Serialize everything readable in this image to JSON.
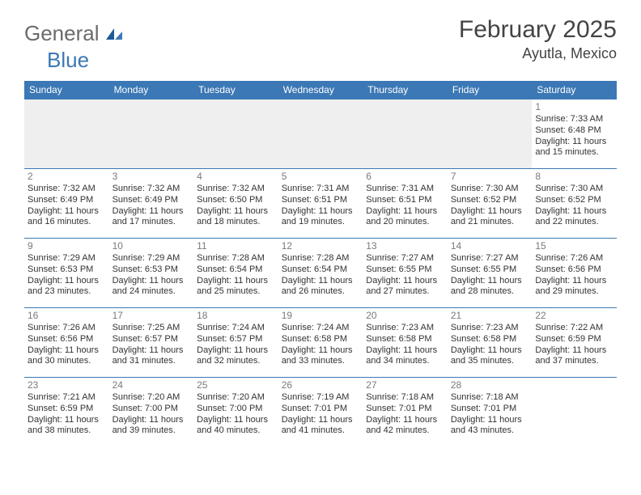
{
  "logo": {
    "part1": "General",
    "part2": "Blue"
  },
  "title": "February 2025",
  "location": "Ayutla, Mexico",
  "colors": {
    "header_bg": "#3b78b5",
    "header_text": "#ffffff",
    "rule": "#3b78b5",
    "daynum": "#7a7a7a",
    "body_text": "#333333",
    "blank_bg": "#efefef"
  },
  "day_headers": [
    "Sunday",
    "Monday",
    "Tuesday",
    "Wednesday",
    "Thursday",
    "Friday",
    "Saturday"
  ],
  "weeks": [
    [
      null,
      null,
      null,
      null,
      null,
      null,
      {
        "n": "1",
        "sr": "Sunrise: 7:33 AM",
        "ss": "Sunset: 6:48 PM",
        "d1": "Daylight: 11 hours",
        "d2": "and 15 minutes."
      }
    ],
    [
      {
        "n": "2",
        "sr": "Sunrise: 7:32 AM",
        "ss": "Sunset: 6:49 PM",
        "d1": "Daylight: 11 hours",
        "d2": "and 16 minutes."
      },
      {
        "n": "3",
        "sr": "Sunrise: 7:32 AM",
        "ss": "Sunset: 6:49 PM",
        "d1": "Daylight: 11 hours",
        "d2": "and 17 minutes."
      },
      {
        "n": "4",
        "sr": "Sunrise: 7:32 AM",
        "ss": "Sunset: 6:50 PM",
        "d1": "Daylight: 11 hours",
        "d2": "and 18 minutes."
      },
      {
        "n": "5",
        "sr": "Sunrise: 7:31 AM",
        "ss": "Sunset: 6:51 PM",
        "d1": "Daylight: 11 hours",
        "d2": "and 19 minutes."
      },
      {
        "n": "6",
        "sr": "Sunrise: 7:31 AM",
        "ss": "Sunset: 6:51 PM",
        "d1": "Daylight: 11 hours",
        "d2": "and 20 minutes."
      },
      {
        "n": "7",
        "sr": "Sunrise: 7:30 AM",
        "ss": "Sunset: 6:52 PM",
        "d1": "Daylight: 11 hours",
        "d2": "and 21 minutes."
      },
      {
        "n": "8",
        "sr": "Sunrise: 7:30 AM",
        "ss": "Sunset: 6:52 PM",
        "d1": "Daylight: 11 hours",
        "d2": "and 22 minutes."
      }
    ],
    [
      {
        "n": "9",
        "sr": "Sunrise: 7:29 AM",
        "ss": "Sunset: 6:53 PM",
        "d1": "Daylight: 11 hours",
        "d2": "and 23 minutes."
      },
      {
        "n": "10",
        "sr": "Sunrise: 7:29 AM",
        "ss": "Sunset: 6:53 PM",
        "d1": "Daylight: 11 hours",
        "d2": "and 24 minutes."
      },
      {
        "n": "11",
        "sr": "Sunrise: 7:28 AM",
        "ss": "Sunset: 6:54 PM",
        "d1": "Daylight: 11 hours",
        "d2": "and 25 minutes."
      },
      {
        "n": "12",
        "sr": "Sunrise: 7:28 AM",
        "ss": "Sunset: 6:54 PM",
        "d1": "Daylight: 11 hours",
        "d2": "and 26 minutes."
      },
      {
        "n": "13",
        "sr": "Sunrise: 7:27 AM",
        "ss": "Sunset: 6:55 PM",
        "d1": "Daylight: 11 hours",
        "d2": "and 27 minutes."
      },
      {
        "n": "14",
        "sr": "Sunrise: 7:27 AM",
        "ss": "Sunset: 6:55 PM",
        "d1": "Daylight: 11 hours",
        "d2": "and 28 minutes."
      },
      {
        "n": "15",
        "sr": "Sunrise: 7:26 AM",
        "ss": "Sunset: 6:56 PM",
        "d1": "Daylight: 11 hours",
        "d2": "and 29 minutes."
      }
    ],
    [
      {
        "n": "16",
        "sr": "Sunrise: 7:26 AM",
        "ss": "Sunset: 6:56 PM",
        "d1": "Daylight: 11 hours",
        "d2": "and 30 minutes."
      },
      {
        "n": "17",
        "sr": "Sunrise: 7:25 AM",
        "ss": "Sunset: 6:57 PM",
        "d1": "Daylight: 11 hours",
        "d2": "and 31 minutes."
      },
      {
        "n": "18",
        "sr": "Sunrise: 7:24 AM",
        "ss": "Sunset: 6:57 PM",
        "d1": "Daylight: 11 hours",
        "d2": "and 32 minutes."
      },
      {
        "n": "19",
        "sr": "Sunrise: 7:24 AM",
        "ss": "Sunset: 6:58 PM",
        "d1": "Daylight: 11 hours",
        "d2": "and 33 minutes."
      },
      {
        "n": "20",
        "sr": "Sunrise: 7:23 AM",
        "ss": "Sunset: 6:58 PM",
        "d1": "Daylight: 11 hours",
        "d2": "and 34 minutes."
      },
      {
        "n": "21",
        "sr": "Sunrise: 7:23 AM",
        "ss": "Sunset: 6:58 PM",
        "d1": "Daylight: 11 hours",
        "d2": "and 35 minutes."
      },
      {
        "n": "22",
        "sr": "Sunrise: 7:22 AM",
        "ss": "Sunset: 6:59 PM",
        "d1": "Daylight: 11 hours",
        "d2": "and 37 minutes."
      }
    ],
    [
      {
        "n": "23",
        "sr": "Sunrise: 7:21 AM",
        "ss": "Sunset: 6:59 PM",
        "d1": "Daylight: 11 hours",
        "d2": "and 38 minutes."
      },
      {
        "n": "24",
        "sr": "Sunrise: 7:20 AM",
        "ss": "Sunset: 7:00 PM",
        "d1": "Daylight: 11 hours",
        "d2": "and 39 minutes."
      },
      {
        "n": "25",
        "sr": "Sunrise: 7:20 AM",
        "ss": "Sunset: 7:00 PM",
        "d1": "Daylight: 11 hours",
        "d2": "and 40 minutes."
      },
      {
        "n": "26",
        "sr": "Sunrise: 7:19 AM",
        "ss": "Sunset: 7:01 PM",
        "d1": "Daylight: 11 hours",
        "d2": "and 41 minutes."
      },
      {
        "n": "27",
        "sr": "Sunrise: 7:18 AM",
        "ss": "Sunset: 7:01 PM",
        "d1": "Daylight: 11 hours",
        "d2": "and 42 minutes."
      },
      {
        "n": "28",
        "sr": "Sunrise: 7:18 AM",
        "ss": "Sunset: 7:01 PM",
        "d1": "Daylight: 11 hours",
        "d2": "and 43 minutes."
      },
      null
    ]
  ]
}
